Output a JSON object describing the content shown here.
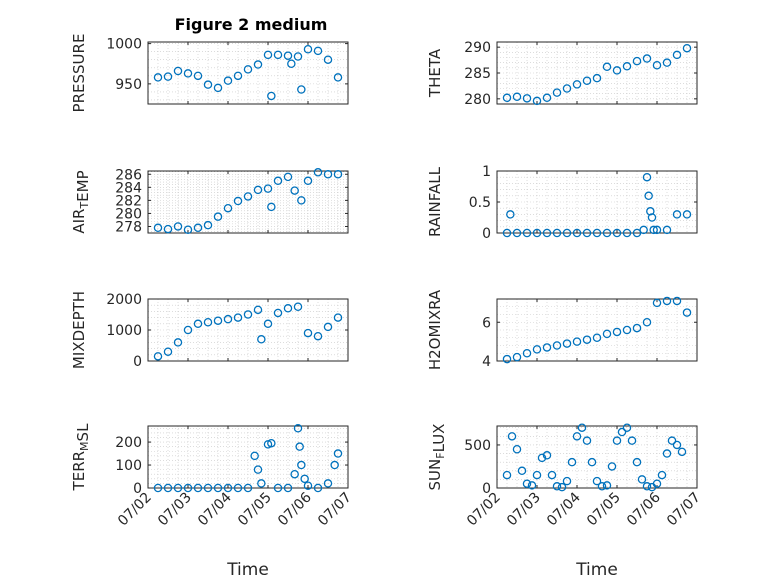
{
  "figure": {
    "title": "Figure 2 medium"
  },
  "marker_color": "#0072BD",
  "x_date_ticks": [
    "07/02",
    "07/03",
    "07/04",
    "07/05",
    "07/06",
    "07/07"
  ],
  "x_label": "Time",
  "chart_data": [
    {
      "type": "scatter",
      "ylabel": "PRESSURE",
      "ylim": [
        925,
        1002
      ],
      "yticks": [
        950,
        1000
      ],
      "grid": true,
      "x": [
        "07/02 06:00",
        "07/02 12:00",
        "07/02 18:00",
        "07/03 00:00",
        "07/03 06:00",
        "07/03 12:00",
        "07/03 18:00",
        "07/04 00:00",
        "07/04 06:00",
        "07/04 12:00",
        "07/04 18:00",
        "07/05 00:00",
        "07/05 02:00",
        "07/05 06:00",
        "07/05 12:00",
        "07/05 14:00",
        "07/05 18:00",
        "07/05 20:00",
        "07/06 00:00",
        "07/06 06:00",
        "07/06 12:00",
        "07/06 18:00"
      ],
      "y": [
        958,
        959,
        966,
        963,
        960,
        949,
        945,
        954,
        960,
        968,
        974,
        986,
        935,
        986,
        985,
        975,
        984,
        943,
        993,
        991,
        980,
        958
      ]
    },
    {
      "type": "scatter",
      "ylabel": "THETA",
      "ylim": [
        279,
        291
      ],
      "yticks": [
        280,
        285,
        290
      ],
      "grid": true,
      "x": [
        "07/02 06:00",
        "07/02 12:00",
        "07/02 18:00",
        "07/03 00:00",
        "07/03 06:00",
        "07/03 12:00",
        "07/03 18:00",
        "07/04 00:00",
        "07/04 06:00",
        "07/04 12:00",
        "07/04 18:00",
        "07/05 00:00",
        "07/05 06:00",
        "07/05 12:00",
        "07/05 18:00",
        "07/06 00:00",
        "07/06 06:00",
        "07/06 12:00",
        "07/06 18:00"
      ],
      "y": [
        280.2,
        280.4,
        280.1,
        279.6,
        280.2,
        281.2,
        282.0,
        282.8,
        283.5,
        284.0,
        286.2,
        285.5,
        286.3,
        287.3,
        287.8,
        286.5,
        287.0,
        288.5,
        289.8
      ]
    },
    {
      "type": "scatter",
      "ylabel": "AIR_TEMP",
      "ylim": [
        277,
        286.5
      ],
      "yticks": [
        278,
        280,
        282,
        284,
        286
      ],
      "grid": true,
      "x": [
        "07/02 06:00",
        "07/02 12:00",
        "07/02 18:00",
        "07/03 00:00",
        "07/03 06:00",
        "07/03 12:00",
        "07/03 18:00",
        "07/04 00:00",
        "07/04 06:00",
        "07/04 12:00",
        "07/04 18:00",
        "07/05 00:00",
        "07/05 02:00",
        "07/05 06:00",
        "07/05 12:00",
        "07/05 16:00",
        "07/05 20:00",
        "07/06 00:00",
        "07/06 06:00",
        "07/06 12:00",
        "07/06 18:00"
      ],
      "y": [
        277.8,
        277.6,
        278.0,
        277.5,
        277.8,
        278.2,
        279.5,
        280.8,
        281.9,
        282.6,
        283.6,
        283.8,
        281.0,
        285.0,
        285.6,
        283.5,
        282.0,
        285.0,
        286.3,
        286.0,
        286.0
      ]
    },
    {
      "type": "scatter",
      "ylabel": "RAINFALL",
      "ylim": [
        0,
        1
      ],
      "yticks": [
        0,
        0.5,
        1
      ],
      "grid": true,
      "x": [
        "07/02 06:00",
        "07/02 08:00",
        "07/02 12:00",
        "07/02 18:00",
        "07/03 00:00",
        "07/03 06:00",
        "07/03 12:00",
        "07/03 18:00",
        "07/04 00:00",
        "07/04 06:00",
        "07/04 12:00",
        "07/04 18:00",
        "07/05 00:00",
        "07/05 06:00",
        "07/05 12:00",
        "07/05 16:00",
        "07/05 18:00",
        "07/05 19:00",
        "07/05 20:00",
        "07/05 21:00",
        "07/05 22:00",
        "07/06 00:00",
        "07/06 06:00",
        "07/06 12:00",
        "07/06 18:00"
      ],
      "y": [
        0,
        0.3,
        0,
        0,
        0,
        0,
        0,
        0,
        0,
        0,
        0,
        0,
        0,
        0,
        0,
        0.05,
        0.9,
        0.6,
        0.35,
        0.25,
        0.05,
        0.05,
        0.05,
        0.3,
        0.3
      ]
    },
    {
      "type": "scatter",
      "ylabel": "MIXDEPTH",
      "ylim": [
        0,
        2000
      ],
      "yticks": [
        0,
        1000,
        2000
      ],
      "grid": true,
      "x": [
        "07/02 06:00",
        "07/02 12:00",
        "07/02 18:00",
        "07/03 00:00",
        "07/03 06:00",
        "07/03 12:00",
        "07/03 18:00",
        "07/04 00:00",
        "07/04 06:00",
        "07/04 12:00",
        "07/04 18:00",
        "07/04 20:00",
        "07/05 00:00",
        "07/05 06:00",
        "07/05 12:00",
        "07/05 18:00",
        "07/06 00:00",
        "07/06 06:00",
        "07/06 12:00",
        "07/06 18:00"
      ],
      "y": [
        150,
        300,
        600,
        1000,
        1200,
        1250,
        1300,
        1350,
        1400,
        1500,
        1650,
        700,
        1200,
        1550,
        1700,
        1750,
        900,
        800,
        1100,
        1400
      ]
    },
    {
      "type": "scatter",
      "ylabel": "H2OMIXRA",
      "ylim": [
        4,
        7.2
      ],
      "yticks": [
        4,
        6
      ],
      "grid": true,
      "x": [
        "07/02 06:00",
        "07/02 12:00",
        "07/02 18:00",
        "07/03 00:00",
        "07/03 06:00",
        "07/03 12:00",
        "07/03 18:00",
        "07/04 00:00",
        "07/04 06:00",
        "07/04 12:00",
        "07/04 18:00",
        "07/05 00:00",
        "07/05 06:00",
        "07/05 12:00",
        "07/05 18:00",
        "07/06 00:00",
        "07/06 06:00",
        "07/06 12:00",
        "07/06 18:00"
      ],
      "y": [
        4.1,
        4.2,
        4.4,
        4.6,
        4.7,
        4.8,
        4.9,
        5.0,
        5.1,
        5.2,
        5.4,
        5.5,
        5.6,
        5.7,
        6.0,
        7.0,
        7.1,
        7.1,
        6.5
      ]
    },
    {
      "type": "scatter",
      "ylabel": "TERR_MSL",
      "ylim": [
        0,
        270
      ],
      "yticks": [
        0,
        100,
        200
      ],
      "grid": true,
      "x": [
        "07/02 06:00",
        "07/02 12:00",
        "07/02 18:00",
        "07/03 00:00",
        "07/03 06:00",
        "07/03 12:00",
        "07/03 18:00",
        "07/04 00:00",
        "07/04 06:00",
        "07/04 12:00",
        "07/04 16:00",
        "07/04 18:00",
        "07/04 20:00",
        "07/05 00:00",
        "07/05 02:00",
        "07/05 06:00",
        "07/05 12:00",
        "07/05 16:00",
        "07/05 18:00",
        "07/05 19:00",
        "07/05 20:00",
        "07/05 22:00",
        "07/06 00:00",
        "07/06 06:00",
        "07/06 12:00",
        "07/06 16:00",
        "07/06 18:00"
      ],
      "y": [
        0,
        0,
        0,
        0,
        0,
        0,
        0,
        0,
        0,
        0,
        140,
        80,
        20,
        190,
        195,
        0,
        0,
        60,
        260,
        180,
        100,
        40,
        10,
        0,
        20,
        100,
        150
      ]
    },
    {
      "type": "scatter",
      "ylabel": "SUN_FLUX",
      "ylim": [
        0,
        720
      ],
      "yticks": [
        0,
        500
      ],
      "grid": true,
      "x": [
        "07/02 06:00",
        "07/02 09:00",
        "07/02 12:00",
        "07/02 15:00",
        "07/02 18:00",
        "07/02 21:00",
        "07/03 00:00",
        "07/03 03:00",
        "07/03 06:00",
        "07/03 09:00",
        "07/03 12:00",
        "07/03 15:00",
        "07/03 18:00",
        "07/03 21:00",
        "07/04 00:00",
        "07/04 03:00",
        "07/04 06:00",
        "07/04 09:00",
        "07/04 12:00",
        "07/04 15:00",
        "07/04 18:00",
        "07/04 21:00",
        "07/05 00:00",
        "07/05 03:00",
        "07/05 06:00",
        "07/05 09:00",
        "07/05 12:00",
        "07/05 15:00",
        "07/05 18:00",
        "07/05 21:00",
        "07/06 00:00",
        "07/06 03:00",
        "07/06 06:00",
        "07/06 09:00",
        "07/06 12:00",
        "07/06 15:00"
      ],
      "y": [
        150,
        600,
        450,
        200,
        50,
        30,
        150,
        350,
        380,
        150,
        20,
        10,
        80,
        300,
        600,
        700,
        550,
        300,
        80,
        20,
        30,
        250,
        550,
        650,
        700,
        550,
        300,
        100,
        20,
        10,
        50,
        150,
        400,
        550,
        500,
        420
      ]
    }
  ]
}
